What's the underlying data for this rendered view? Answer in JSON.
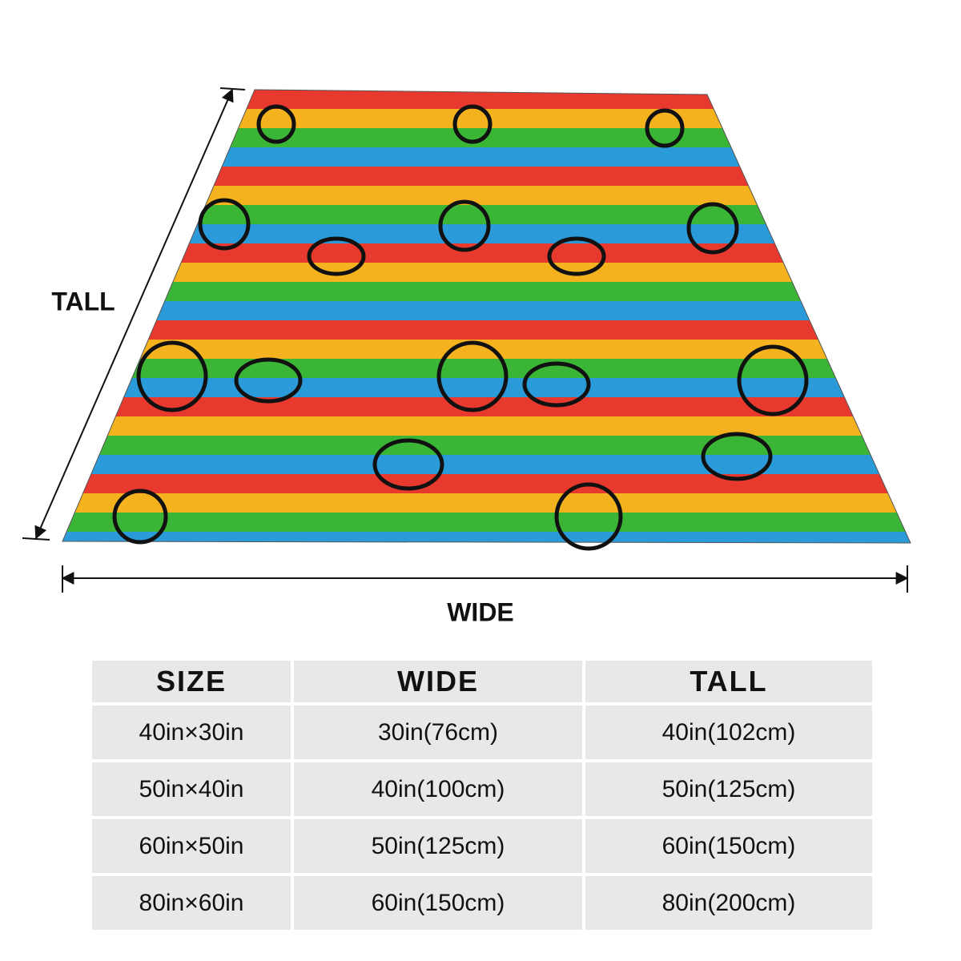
{
  "labels": {
    "tall": "TALL",
    "wide": "WIDE"
  },
  "table": {
    "header": [
      "SIZE",
      "WIDE",
      "TALL"
    ],
    "rows": [
      [
        "40in×30in",
        "30in(76cm)",
        "40in(102cm)"
      ],
      [
        "50in×40in",
        "40in(100cm)",
        "50in(125cm)"
      ],
      [
        "60in×50in",
        "50in(125cm)",
        "60in(150cm)"
      ],
      [
        "80in×60in",
        "60in(150cm)",
        "80in(200cm)"
      ]
    ]
  }
}
